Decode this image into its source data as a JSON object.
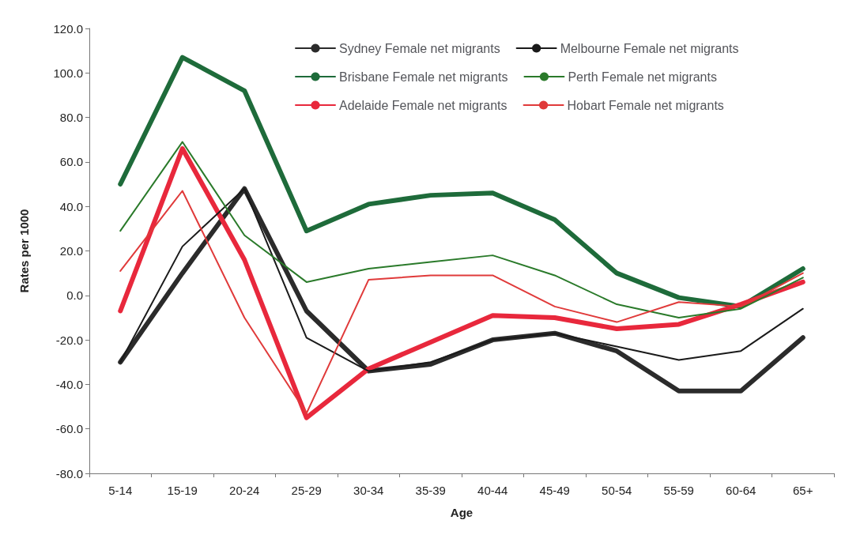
{
  "chart_data": {
    "type": "line",
    "xlabel": "Age",
    "ylabel": "Rates per 1000",
    "categories": [
      "5-14",
      "15-19",
      "20-24",
      "25-29",
      "30-34",
      "35-39",
      "40-44",
      "45-49",
      "50-54",
      "55-59",
      "60-64",
      "65+"
    ],
    "series": [
      {
        "name": "Sydney Female net migrants",
        "color": "#2b2b2b",
        "values": [
          -30,
          10,
          48,
          -7,
          -34,
          -31,
          -20,
          -17,
          -25,
          -43,
          -43,
          -19
        ]
      },
      {
        "name": "Melbourne Female net migrants",
        "color": "#1a1a1a",
        "values": [
          -30,
          22,
          48,
          -19,
          -34,
          -30,
          -20,
          -17,
          -23,
          -29,
          -25,
          -6
        ]
      },
      {
        "name": "Brisbane Female net migrants",
        "color": "#1e6b3a",
        "values": [
          50,
          107,
          92,
          29,
          41,
          45,
          46,
          34,
          10,
          -1,
          -5,
          12
        ]
      },
      {
        "name": "Perth Female net migrants",
        "color": "#2a7a2a",
        "values": [
          29,
          69,
          27,
          6,
          12,
          15,
          18,
          9,
          -4,
          -10,
          -6,
          8
        ]
      },
      {
        "name": "Adelaide Female net migrants",
        "color": "#e8283c",
        "values": [
          -7,
          66,
          16,
          -55,
          -33,
          -21,
          -9,
          -10,
          -15,
          -13,
          -4,
          6
        ]
      },
      {
        "name": "Hobart Female net migrants",
        "color": "#e03a3a",
        "values": [
          11,
          47,
          -10,
          -53,
          7,
          9,
          9,
          -5,
          -12,
          -3,
          -5,
          10
        ]
      }
    ],
    "ylim": [
      -80,
      120
    ],
    "yticks": [
      {
        "value": -80,
        "label": "-80.0"
      },
      {
        "value": -60,
        "label": "-60.0"
      },
      {
        "value": -40,
        "label": "-40.0"
      },
      {
        "value": -20,
        "label": "-20.0"
      },
      {
        "value": 0,
        "label": "0.0"
      },
      {
        "value": 20,
        "label": "20.0"
      },
      {
        "value": 40,
        "label": "40.0"
      },
      {
        "value": 60,
        "label": "60.0"
      },
      {
        "value": 80,
        "label": "80.0"
      },
      {
        "value": 100,
        "label": "100.0"
      },
      {
        "value": 120,
        "label": "120.0"
      }
    ],
    "grid": false,
    "legend": "top",
    "marker": "none",
    "line_style": "solid"
  }
}
